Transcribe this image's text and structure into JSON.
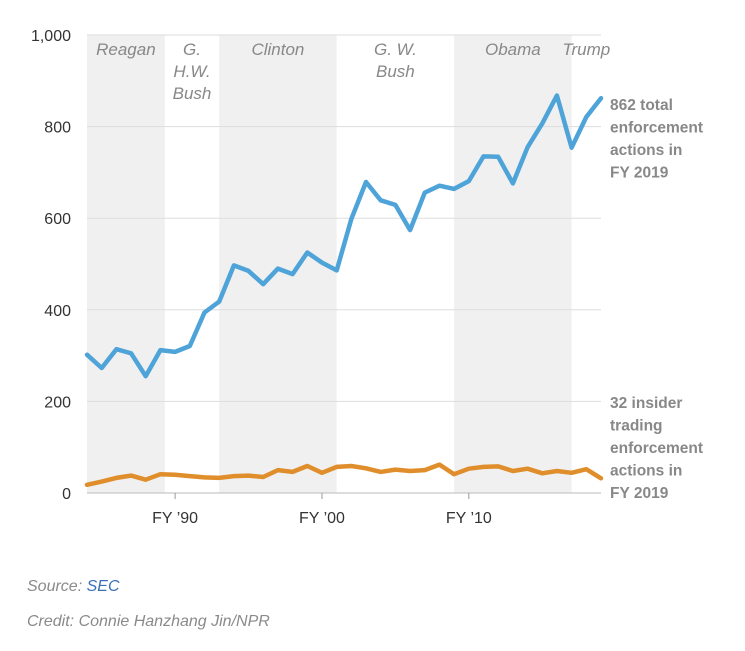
{
  "chart_data": {
    "type": "line",
    "x_tick_labels": [
      {
        "x": 1990,
        "label": "FY ’90"
      },
      {
        "x": 2000,
        "label": "FY ’00"
      },
      {
        "x": 2010,
        "label": "FY ’10"
      }
    ],
    "xlim": [
      1984,
      2019
    ],
    "ylim": [
      0,
      1000
    ],
    "y_ticks": [
      0,
      200,
      400,
      600,
      800,
      1000
    ],
    "y_tick_labels": [
      "0",
      "200",
      "400",
      "600",
      "800",
      "1,000"
    ],
    "grid": true,
    "eras": [
      {
        "lines": [
          "Reagan"
        ],
        "start": 1984,
        "end": 1989.3,
        "shaded": true
      },
      {
        "lines": [
          "G.",
          "H.W.",
          "Bush"
        ],
        "start": 1989.3,
        "end": 1993,
        "shaded": false
      },
      {
        "lines": [
          "Clinton"
        ],
        "start": 1993,
        "end": 2001,
        "shaded": true
      },
      {
        "lines": [
          "G. W.",
          "Bush"
        ],
        "start": 2001,
        "end": 2009,
        "shaded": false
      },
      {
        "lines": [
          "Obama"
        ],
        "start": 2009,
        "end": 2017,
        "shaded": true
      },
      {
        "lines": [
          "Trump"
        ],
        "start": 2017,
        "end": 2019,
        "shaded": false
      }
    ],
    "x": [
      1984,
      1985,
      1986,
      1987,
      1988,
      1989,
      1990,
      1991,
      1992,
      1993,
      1994,
      1995,
      1996,
      1997,
      1998,
      1999,
      2000,
      2001,
      2002,
      2003,
      2004,
      2005,
      2006,
      2007,
      2008,
      2009,
      2010,
      2011,
      2012,
      2013,
      2014,
      2015,
      2016,
      2017,
      2018,
      2019
    ],
    "series": [
      {
        "values": [
          302,
          273,
          314,
          305,
          255,
          312,
          308,
          321,
          394,
          418,
          497,
          485,
          456,
          490,
          478,
          525,
          503,
          486,
          598,
          679,
          639,
          629,
          574,
          656,
          671,
          664,
          681,
          735,
          734,
          676,
          755,
          807,
          868,
          754,
          821,
          862
        ],
        "color": "#4ea3d8",
        "annotation": [
          "862 total",
          "enforcement",
          "actions in",
          "FY 2019"
        ]
      },
      {
        "values": [
          18,
          25,
          33,
          38,
          29,
          41,
          40,
          37,
          34,
          33,
          37,
          38,
          35,
          50,
          46,
          59,
          44,
          57,
          59,
          54,
          46,
          51,
          48,
          50,
          62,
          41,
          53,
          57,
          58,
          48,
          53,
          43,
          48,
          44,
          52,
          32
        ],
        "color": "#e08e2b",
        "annotation": [
          "32 insider",
          "trading",
          "enforcement",
          "actions in",
          "FY 2019"
        ]
      }
    ]
  },
  "footer": {
    "source_prefix": "Source: ",
    "source_link": "SEC",
    "credit": "Credit: Connie Hanzhang Jin/NPR"
  }
}
